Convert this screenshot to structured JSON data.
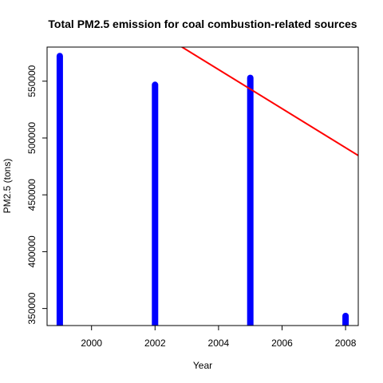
{
  "chart_data": {
    "type": "bar",
    "title": "Total PM2.5 emission for coal combustion-related sources",
    "xlabel": "Year",
    "ylabel": "PM2.5 (tons)",
    "x": [
      1999,
      2002,
      2005,
      2008
    ],
    "values": [
      572126,
      546789,
      552881,
      343432
    ],
    "xlim": [
      1998.6,
      2008.4
    ],
    "ylim": [
      335000,
      580000
    ],
    "xticks": [
      2000,
      2002,
      2004,
      2006,
      2008
    ],
    "yticks": [
      350000,
      400000,
      450000,
      500000,
      550000
    ],
    "bar_color": "#0000ff",
    "trend_line": {
      "color": "#ff0000",
      "intercept_at_x0": 35009000,
      "slope": -17190
    },
    "grid": false,
    "legend": "none"
  }
}
